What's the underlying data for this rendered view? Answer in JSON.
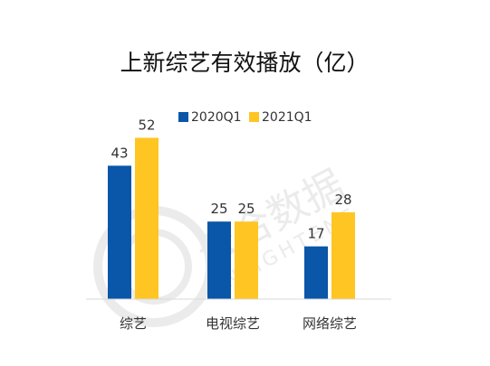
{
  "colors": {
    "series_2020": "#0a56a8",
    "series_2021": "#ffc523",
    "axis": "#d9d9d9",
    "watermark": "#e9e9e9"
  },
  "watermark": {
    "text_cn": "云合数据",
    "text_en": "ENLIGHTENT"
  },
  "chart_data": {
    "type": "bar",
    "title": "上新综艺有效播放（亿）",
    "categories": [
      "综艺",
      "电视综艺",
      "网络综艺"
    ],
    "series": [
      {
        "name": "2020Q1",
        "values": [
          43,
          25,
          17
        ]
      },
      {
        "name": "2021Q1",
        "values": [
          52,
          25,
          28
        ]
      }
    ],
    "legend_position": "top-center",
    "grid": false,
    "ylim": [
      0,
      60
    ],
    "show_data_labels": true
  }
}
